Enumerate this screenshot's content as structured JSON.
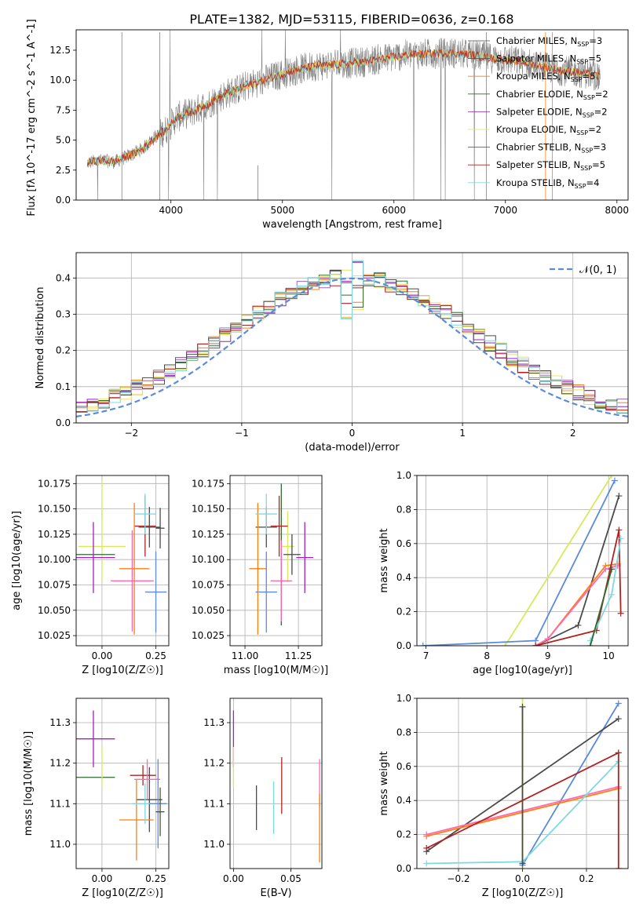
{
  "title": "PLATE=1382, MJD=53115, FIBERID=0636, z=0.168",
  "colors": {
    "grid": "#b0b0b0",
    "data": "#808080",
    "fits": [
      "#ff7f0e",
      "#9467bd",
      "#f7e06a",
      "#2e6b2e",
      "#a020c0",
      "#d9e85a",
      "#4a4a4a",
      "#b22222",
      "#80d8e0"
    ]
  },
  "chart_data": [
    {
      "id": "spectrum",
      "type": "line",
      "xlabel": "wavelength [Angstrom, rest frame]",
      "ylabel": "Flux [f_λ 10^-17 erg cm^-2 s^-1 A^-1]",
      "xlim": [
        3150,
        8100
      ],
      "ylim": [
        0,
        14.2
      ],
      "xticks": [
        4000,
        5000,
        6000,
        7000,
        8000
      ],
      "yticks": [
        0.0,
        2.5,
        5.0,
        7.5,
        10.0,
        12.5
      ],
      "grid": false,
      "legend_position": "top-right",
      "series": [
        {
          "name": "Chabrier MILES, N_SSP=3",
          "color": "#4a4a4a"
        },
        {
          "name": "Salpeter MILES, N_SSP=5",
          "color": "#4a4a4a"
        },
        {
          "name": "Kroupa MILES, N_SSP=5",
          "color": "#ff7f0e"
        },
        {
          "name": "Chabrier ELODIE, N_SSP=2",
          "color": "#2e6b2e"
        },
        {
          "name": "Salpeter ELODIE, N_SSP=2",
          "color": "#a020c0"
        },
        {
          "name": "Kroupa ELODIE, N_SSP=2",
          "color": "#d9e85a"
        },
        {
          "name": "Chabrier STELIB, N_SSP=3",
          "color": "#4a4a4a"
        },
        {
          "name": "Salpeter STELIB, N_SSP=5",
          "color": "#b22222"
        },
        {
          "name": "Kroupa STELIB, N_SSP=4",
          "color": "#80d8e0"
        }
      ],
      "continuum": {
        "x": [
          3250,
          3350,
          3500,
          3650,
          3750,
          3850,
          3950,
          4050,
          4200,
          4350,
          4500,
          4700,
          4900,
          5100,
          5300,
          5500,
          5700,
          5900,
          6100,
          6300,
          6500,
          6700,
          6900,
          7100,
          7300,
          7500,
          7700,
          7850
        ],
        "y": [
          3.1,
          3.3,
          3.2,
          3.8,
          4.3,
          5.2,
          5.8,
          6.9,
          7.4,
          8.1,
          8.9,
          9.6,
          10.2,
          10.8,
          11.2,
          11.3,
          11.5,
          11.8,
          12.1,
          12.2,
          12.3,
          12.1,
          11.8,
          11.6,
          11.2,
          10.8,
          10.6,
          10.3
        ]
      }
    },
    {
      "id": "residuals",
      "type": "line",
      "xlabel": "(data-model)/error",
      "ylabel": "Normed distribution",
      "xlim": [
        -2.5,
        2.5
      ],
      "ylim": [
        0,
        0.47
      ],
      "xticks": [
        -2,
        -1,
        0,
        1,
        2
      ],
      "yticks": [
        0.0,
        0.1,
        0.2,
        0.3,
        0.4
      ],
      "grid": true,
      "legend_position": "top-right",
      "gaussian_label": "𝒩(0, 1)",
      "bins": 50,
      "gaussian_color": "#5b8bd9"
    },
    {
      "id": "age_vs_Z",
      "type": "scatter",
      "xlabel": "Z [log10(Z/Z☉)]",
      "ylabel": "age [log10(age/yr)]",
      "xlim": [
        -0.12,
        0.31
      ],
      "ylim": [
        10.015,
        10.183
      ],
      "xticks": [
        0.0,
        0.25
      ],
      "yticks": [
        10.025,
        10.05,
        10.075,
        10.1,
        10.125,
        10.15,
        10.175
      ],
      "grid": true,
      "points": [
        {
          "x": 0.0,
          "y": 10.113,
          "xerr": 0.11,
          "yerr": 0.035,
          "color": "#d9e85a"
        },
        {
          "x": -0.04,
          "y": 10.105,
          "xerr": 0.1,
          "yerr": 0.0,
          "color": "#2e6b2e"
        },
        {
          "x": -0.04,
          "y": 10.102,
          "xerr": 0.1,
          "yerr": 0.035,
          "color": "#a020c0"
        },
        {
          "x": 0.2,
          "y": 10.133,
          "xerr": 0.05,
          "yerr": 0.03,
          "color": "#b22222"
        },
        {
          "x": 0.22,
          "y": 10.132,
          "xerr": 0.05,
          "yerr": 0.02,
          "color": "#4a4a4a"
        },
        {
          "x": 0.15,
          "y": 10.091,
          "xerr": 0.07,
          "yerr": 0.065,
          "color": "#ff7f0e"
        },
        {
          "x": 0.14,
          "y": 10.079,
          "xerr": 0.1,
          "yerr": 0.05,
          "color": "#ff69b4"
        },
        {
          "x": 0.2,
          "y": 10.145,
          "xerr": 0.05,
          "yerr": 0.02,
          "color": "#80d8e0"
        },
        {
          "x": 0.25,
          "y": 10.068,
          "xerr": 0.05,
          "yerr": 0.04,
          "color": "#5b8bd9"
        },
        {
          "x": 0.27,
          "y": 10.131,
          "xerr": 0.02,
          "yerr": 0.02,
          "color": "#4a4a4a"
        },
        {
          "x": 0.0,
          "y": 10.16,
          "xerr": 0.0,
          "yerr": 0.018,
          "color": "#d9e85a"
        }
      ]
    },
    {
      "id": "age_vs_mass",
      "type": "scatter",
      "xlabel": "mass [log10(M/M☉)]",
      "ylabel": "",
      "xlim": [
        10.93,
        11.36
      ],
      "ylim": [
        10.015,
        10.183
      ],
      "xticks": [
        11.0,
        11.25
      ],
      "yticks": [
        10.025,
        10.05,
        10.075,
        10.1,
        10.125,
        10.15,
        10.175
      ],
      "grid": true,
      "points": [
        {
          "x": 11.2,
          "y": 10.113,
          "xerr": 0.03,
          "yerr": 0.035,
          "color": "#d9e85a"
        },
        {
          "x": 11.17,
          "y": 10.105,
          "xerr": 0.0,
          "yerr": 0.07,
          "color": "#2e6b2e"
        },
        {
          "x": 11.28,
          "y": 10.102,
          "xerr": 0.04,
          "yerr": 0.035,
          "color": "#a020c0"
        },
        {
          "x": 11.16,
          "y": 10.133,
          "xerr": 0.04,
          "yerr": 0.03,
          "color": "#b22222"
        },
        {
          "x": 11.1,
          "y": 10.132,
          "xerr": 0.05,
          "yerr": 0.02,
          "color": "#4a4a4a"
        },
        {
          "x": 11.06,
          "y": 10.091,
          "xerr": 0.04,
          "yerr": 0.065,
          "color": "#ff7f0e"
        },
        {
          "x": 11.17,
          "y": 10.079,
          "xerr": 0.05,
          "yerr": 0.04,
          "color": "#ff69b4"
        },
        {
          "x": 11.1,
          "y": 10.145,
          "xerr": 0.05,
          "yerr": 0.02,
          "color": "#80d8e0"
        },
        {
          "x": 11.1,
          "y": 10.068,
          "xerr": 0.05,
          "yerr": 0.04,
          "color": "#5b8bd9"
        },
        {
          "x": 11.22,
          "y": 10.105,
          "xerr": 0.04,
          "yerr": 0.02,
          "color": "#4a4a4a"
        }
      ]
    },
    {
      "id": "weight_vs_age",
      "type": "line",
      "xlabel": "age [log10(age/yr)]",
      "ylabel": "mass weight",
      "xlim": [
        6.85,
        10.32
      ],
      "ylim": [
        0,
        1.0
      ],
      "xticks": [
        7,
        8,
        9,
        10
      ],
      "yticks": [
        0.0,
        0.2,
        0.4,
        0.6,
        0.8,
        1.0
      ],
      "grid": true,
      "series": [
        {
          "color": "#d9e85a",
          "x": [
            8.3,
            10.05
          ],
          "y": [
            0.0,
            1.0
          ]
        },
        {
          "color": "#5b8bd9",
          "x": [
            6.95,
            8.8,
            10.1
          ],
          "y": [
            0.0,
            0.03,
            0.97
          ]
        },
        {
          "color": "#4a4a4a",
          "x": [
            8.8,
            9.5,
            10.17
          ],
          "y": [
            0.0,
            0.12,
            0.88
          ]
        },
        {
          "color": "#ff7f0e",
          "x": [
            8.8,
            9.0,
            9.95,
            10.15
          ],
          "y": [
            0.0,
            0.04,
            0.47,
            0.48
          ]
        },
        {
          "color": "#ff69b4",
          "x": [
            8.8,
            9.0,
            9.95,
            10.15
          ],
          "y": [
            0.0,
            0.04,
            0.45,
            0.47
          ]
        },
        {
          "color": "#b22222",
          "x": [
            8.8,
            9.8,
            10.17,
            10.2
          ],
          "y": [
            0.0,
            0.09,
            0.68,
            0.19
          ]
        },
        {
          "color": "#80d8e0",
          "x": [
            9.7,
            10.05,
            10.2
          ],
          "y": [
            0.03,
            0.3,
            0.63
          ]
        },
        {
          "color": "#2e6b2e",
          "x": [
            9.7,
            10.05
          ],
          "y": [
            0.0,
            0.45
          ]
        }
      ]
    },
    {
      "id": "mass_vs_Z",
      "type": "scatter",
      "xlabel": "Z [log10(Z/Z☉)]",
      "ylabel": "mass [log10(M/M☉)]",
      "xlim": [
        -0.12,
        0.31
      ],
      "ylim": [
        10.94,
        11.36
      ],
      "xticks": [
        0.0,
        0.25
      ],
      "yticks": [
        11.0,
        11.1,
        11.2,
        11.3
      ],
      "grid": true,
      "points": [
        {
          "x": -0.04,
          "y": 11.26,
          "xerr": 0.1,
          "yerr": 0.07,
          "color": "#a020c0"
        },
        {
          "x": -0.04,
          "y": 11.165,
          "xerr": 0.1,
          "yerr": 0.0,
          "color": "#2e6b2e"
        },
        {
          "x": 0.0,
          "y": 11.19,
          "xerr": 0.0,
          "yerr": 0.05,
          "color": "#d9e85a"
        },
        {
          "x": 0.19,
          "y": 11.17,
          "xerr": 0.06,
          "yerr": 0.025,
          "color": "#b22222"
        },
        {
          "x": 0.22,
          "y": 11.11,
          "xerr": 0.06,
          "yerr": 0.08,
          "color": "#4a4a4a"
        },
        {
          "x": 0.16,
          "y": 11.06,
          "xerr": 0.08,
          "yerr": 0.1,
          "color": "#ff7f0e"
        },
        {
          "x": 0.21,
          "y": 11.16,
          "xerr": 0.06,
          "yerr": 0.05,
          "color": "#ff69b4"
        },
        {
          "x": 0.2,
          "y": 11.1,
          "xerr": 0.06,
          "yerr": 0.05,
          "color": "#80d8e0"
        },
        {
          "x": 0.26,
          "y": 11.1,
          "xerr": 0.04,
          "yerr": 0.11,
          "color": "#5b8bd9"
        },
        {
          "x": 0.27,
          "y": 11.08,
          "xerr": 0.02,
          "yerr": 0.06,
          "color": "#4a4a4a"
        }
      ]
    },
    {
      "id": "mass_vs_ebv",
      "type": "scatter",
      "xlabel": "E(B-V)",
      "ylabel": "",
      "xlim": [
        -0.003,
        0.077
      ],
      "ylim": [
        10.94,
        11.36
      ],
      "xticks": [
        0.0,
        0.05
      ],
      "yticks": [
        11.0,
        11.1,
        11.2,
        11.3
      ],
      "grid": true,
      "points": [
        {
          "x": 0.0,
          "y": 11.26,
          "yerr": 0.07,
          "color": "#a020c0"
        },
        {
          "x": 0.0,
          "y": 11.19,
          "yerr": 0.05,
          "color": "#d9e85a"
        },
        {
          "x": 0.02,
          "y": 11.09,
          "yerr": 0.055,
          "color": "#4a4a4a"
        },
        {
          "x": 0.035,
          "y": 11.09,
          "yerr": 0.065,
          "color": "#80d8e0"
        },
        {
          "x": 0.042,
          "y": 11.145,
          "yerr": 0.07,
          "color": "#b22222"
        },
        {
          "x": 0.075,
          "y": 11.15,
          "yerr": 0.06,
          "color": "#ff69b4"
        },
        {
          "x": 0.075,
          "y": 11.04,
          "yerr": 0.085,
          "color": "#ff7f0e"
        }
      ]
    },
    {
      "id": "weight_vs_Z",
      "type": "line",
      "xlabel": "Z [log10(Z/Z☉)]",
      "ylabel": "mass weight",
      "xlim": [
        -0.33,
        0.33
      ],
      "ylim": [
        0,
        1.0
      ],
      "xticks": [
        -0.2,
        0.0,
        0.2
      ],
      "yticks": [
        0.0,
        0.2,
        0.4,
        0.6,
        0.8,
        1.0
      ],
      "grid": true,
      "series": [
        {
          "color": "#d9e85a",
          "x": [
            0.0,
            0.0
          ],
          "y": [
            0.0,
            1.0
          ]
        },
        {
          "color": "#5b8bd9",
          "x": [
            0.0,
            0.3
          ],
          "y": [
            0.02,
            0.97
          ]
        },
        {
          "color": "#4a4a4a",
          "x": [
            -0.3,
            0.3
          ],
          "y": [
            0.1,
            0.88
          ]
        },
        {
          "color": "#ff7f0e",
          "x": [
            -0.3,
            0.3
          ],
          "y": [
            0.19,
            0.47
          ]
        },
        {
          "color": "#ff69b4",
          "x": [
            -0.3,
            0.3
          ],
          "y": [
            0.2,
            0.48
          ]
        },
        {
          "color": "#b22222",
          "x": [
            -0.3,
            0.3
          ],
          "y": [
            0.12,
            0.68
          ]
        },
        {
          "color": "#80d8e0",
          "x": [
            -0.3,
            0.0,
            0.3
          ],
          "y": [
            0.03,
            0.04,
            0.63
          ]
        },
        {
          "color": "#4a4a4a",
          "x": [
            0.0,
            0.0
          ],
          "y": [
            0.03,
            0.95
          ]
        },
        {
          "color": "#b22222",
          "x": [
            0.3,
            0.3
          ],
          "y": [
            0.0,
            0.68
          ]
        }
      ]
    }
  ]
}
